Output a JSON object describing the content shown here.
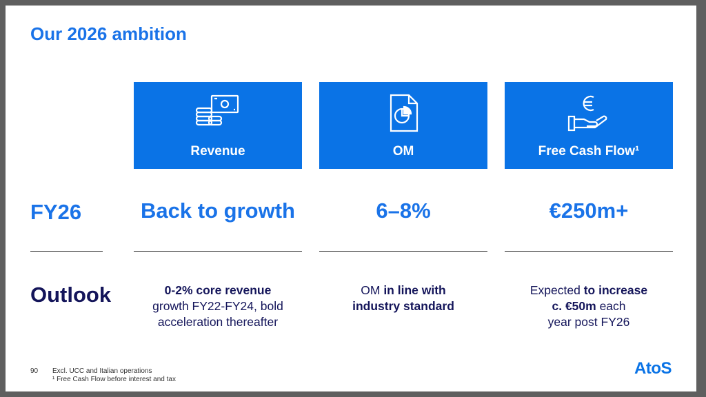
{
  "slide": {
    "title": "Our 2026 ambition",
    "row_fy": "FY26",
    "row_outlook": "Outlook",
    "page_number": "90",
    "footnote_1": "Excl. UCC and Italian operations",
    "footnote_2": "¹ Free Cash Flow before interest and tax",
    "logo": "AtoS"
  },
  "columns": [
    {
      "icon": "coins-banknote-icon",
      "label": "Revenue",
      "target": "Back to growth",
      "desc_line1_bold": "0-2% core revenue",
      "desc_line2": "growth FY22-FY24, bold",
      "desc_line3": "acceleration thereafter"
    },
    {
      "icon": "pie-chart-document-icon",
      "label": "OM",
      "target": "6–8%",
      "desc_line1_pre": "OM ",
      "desc_line1_bold": "in line with",
      "desc_line2_bold": "industry standard"
    },
    {
      "icon": "euro-hand-icon",
      "label": "Free Cash Flow¹",
      "target": "€250m+",
      "desc_line1_pre": "Expected ",
      "desc_line1_bold": "to increase",
      "desc_line2_bold": "c. €50m",
      "desc_line2_post": " each",
      "desc_line3": "year post FY26"
    }
  ],
  "colors": {
    "accent_blue": "#0a73e6",
    "dark_navy": "#14155a"
  }
}
